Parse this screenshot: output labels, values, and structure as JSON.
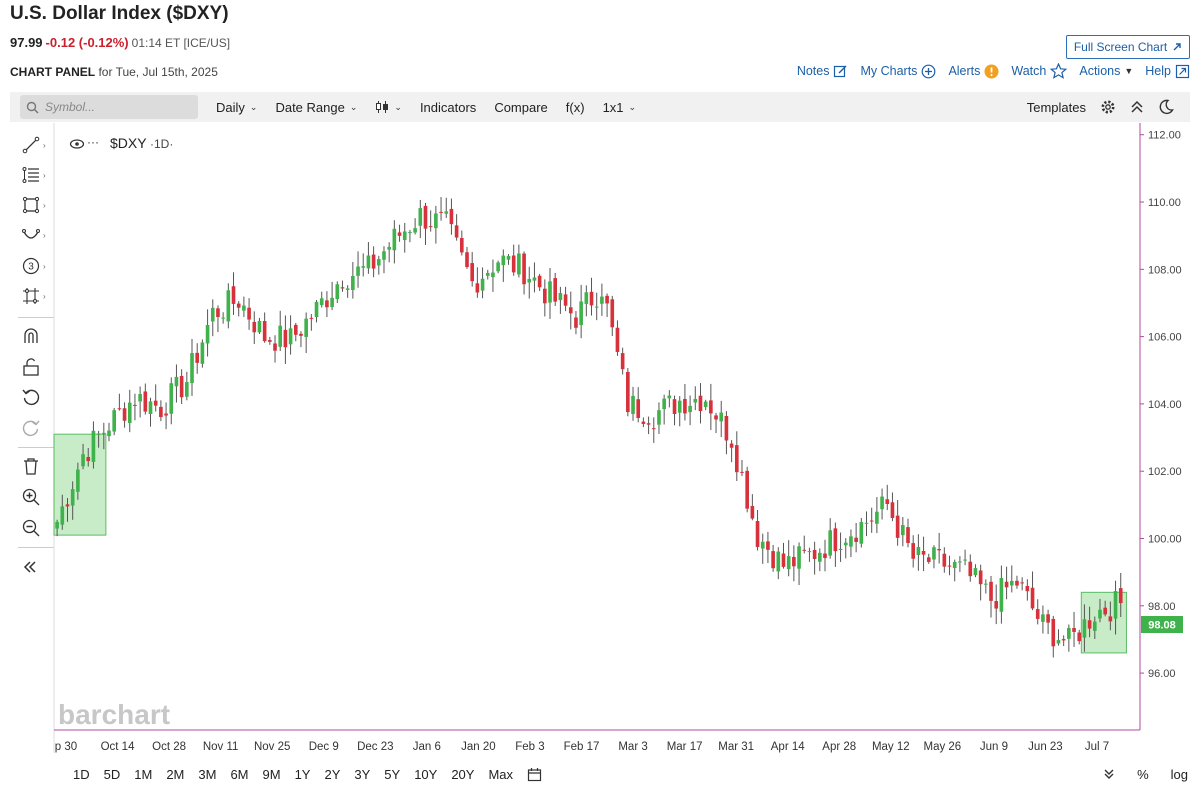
{
  "header": {
    "title": "U.S. Dollar Index ($DXY)",
    "last": "97.99",
    "change": "-0.12 (-0.12%)",
    "time": "01:14 ET [ICE/US]",
    "panel_label": "CHART PANEL",
    "panel_date": "for Tue, Jul 15th, 2025",
    "fullscreen": "Full Screen Chart"
  },
  "toplinks": {
    "notes": "Notes",
    "my_charts": "My Charts",
    "alerts": "Alerts",
    "watch": "Watch",
    "actions": "Actions",
    "help": "Help"
  },
  "toolbar": {
    "symbol_placeholder": "Symbol...",
    "interval": "Daily",
    "date_range": "Date Range",
    "indicators": "Indicators",
    "compare": "Compare",
    "fx": "f(x)",
    "layout": "1x1",
    "templates": "Templates"
  },
  "chart": {
    "legend": "$DXY",
    "legend_interval": "·1D·",
    "watermark": "barchart",
    "last_price_label": "98.08",
    "colors": {
      "up": "#3fb24c",
      "down": "#d7313b",
      "axis": "#b04aa0",
      "highlight": "#bfe8bf"
    }
  },
  "chart_data": {
    "type": "candlestick",
    "y_ticks": [
      "112.00",
      "110.00",
      "108.00",
      "106.00",
      "104.00",
      "102.00",
      "100.00",
      "98.00",
      "96.00"
    ],
    "x_labels": [
      "p 30",
      "Oct 14",
      "Oct 28",
      "Nov 11",
      "Nov 25",
      "Dec 9",
      "Dec 23",
      "Jan 6",
      "Jan 20",
      "Feb 3",
      "Feb 17",
      "Mar 3",
      "Mar 17",
      "Mar 31",
      "Apr 14",
      "Apr 28",
      "May 12",
      "May 26",
      "Jun 9",
      "Jun 23",
      "Jul 7"
    ],
    "ylim": [
      95.2,
      112.2
    ],
    "series": [
      {
        "key": "Sep 30",
        "close": 100.5
      },
      {
        "key": "Oct 7",
        "close": 102.5
      },
      {
        "key": "Oct 14",
        "close": 103.4
      },
      {
        "key": "Oct 21",
        "close": 104.2
      },
      {
        "key": "Oct 28",
        "close": 103.9
      },
      {
        "key": "Nov 4",
        "close": 104.7
      },
      {
        "key": "Nov 11",
        "close": 106.7
      },
      {
        "key": "Nov 18",
        "close": 107.1
      },
      {
        "key": "Nov 25",
        "close": 106.0
      },
      {
        "key": "Dec 2",
        "close": 105.9
      },
      {
        "key": "Dec 9",
        "close": 106.8
      },
      {
        "key": "Dec 16",
        "close": 107.8
      },
      {
        "key": "Dec 23",
        "close": 108.0
      },
      {
        "key": "Dec 30",
        "close": 108.9
      },
      {
        "key": "Jan 6",
        "close": 109.6
      },
      {
        "key": "Jan 13",
        "close": 109.3
      },
      {
        "key": "Jan 20",
        "close": 107.6
      },
      {
        "key": "Jan 27",
        "close": 108.3
      },
      {
        "key": "Feb 3",
        "close": 108.0
      },
      {
        "key": "Feb 10",
        "close": 107.2
      },
      {
        "key": "Feb 17",
        "close": 106.6
      },
      {
        "key": "Feb 24",
        "close": 107.5
      },
      {
        "key": "Mar 3",
        "close": 104.0
      },
      {
        "key": "Mar 10",
        "close": 103.7
      },
      {
        "key": "Mar 17",
        "close": 104.1
      },
      {
        "key": "Mar 24",
        "close": 104.2
      },
      {
        "key": "Mar 31",
        "close": 103.0
      },
      {
        "key": "Apr 7",
        "close": 100.1
      },
      {
        "key": "Apr 14",
        "close": 99.2
      },
      {
        "key": "Apr 21",
        "close": 99.5
      },
      {
        "key": "Apr 28",
        "close": 100.0
      },
      {
        "key": "May 5",
        "close": 100.4
      },
      {
        "key": "May 12",
        "close": 101.0
      },
      {
        "key": "May 19",
        "close": 99.4
      },
      {
        "key": "May 26",
        "close": 99.3
      },
      {
        "key": "Jun 2",
        "close": 99.0
      },
      {
        "key": "Jun 9",
        "close": 98.2
      },
      {
        "key": "Jun 16",
        "close": 98.7
      },
      {
        "key": "Jun 23",
        "close": 97.4
      },
      {
        "key": "Jun 30",
        "close": 96.9
      },
      {
        "key": "Jul 7",
        "close": 97.8
      },
      {
        "key": "Jul 14",
        "close": 98.08
      }
    ]
  },
  "bottom": {
    "ranges": [
      "1D",
      "5D",
      "1M",
      "2M",
      "3M",
      "6M",
      "9M",
      "1Y",
      "2Y",
      "3Y",
      "5Y",
      "10Y",
      "20Y",
      "Max"
    ],
    "percent": "%",
    "log": "log"
  }
}
